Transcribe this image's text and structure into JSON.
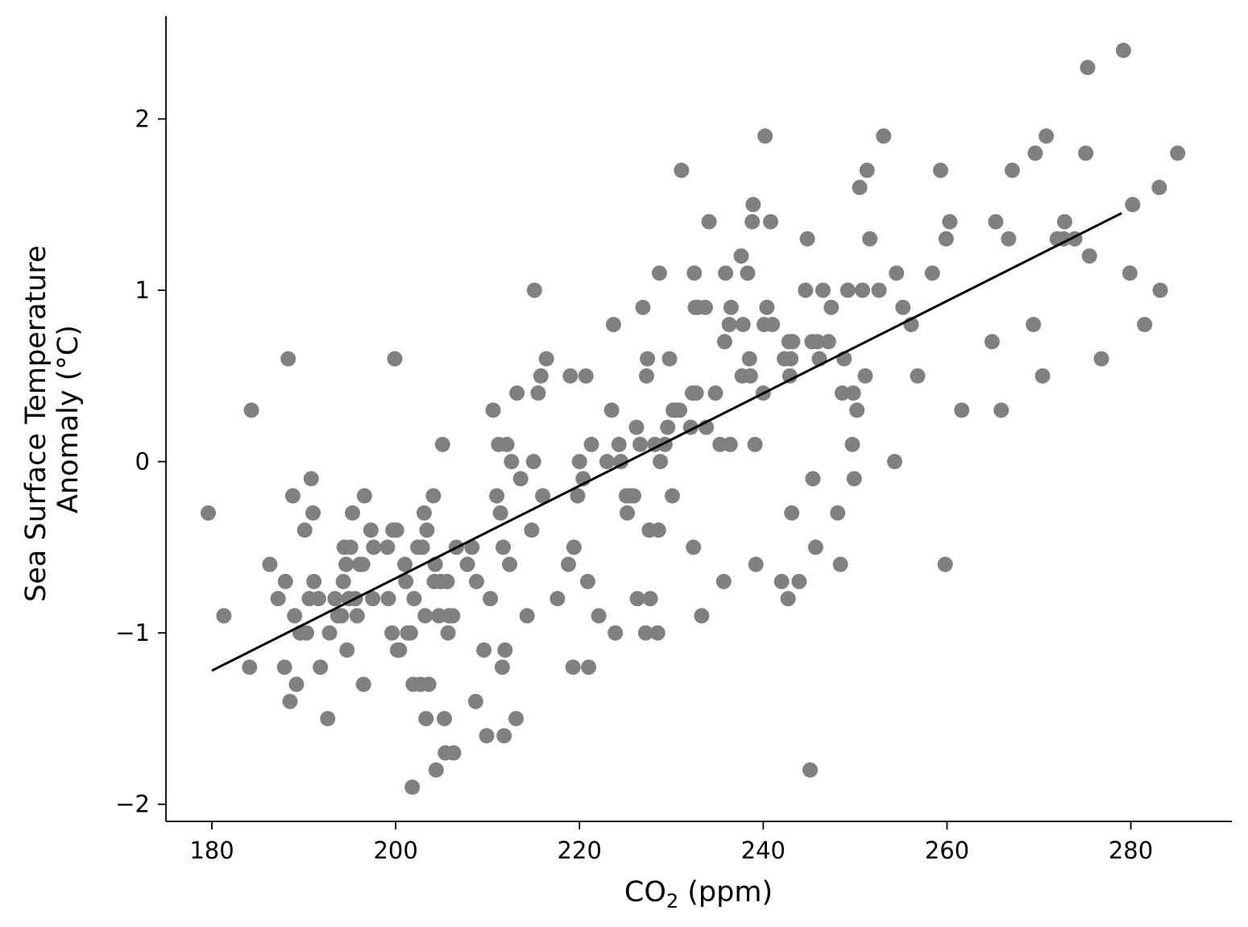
{
  "chart_data": {
    "type": "scatter",
    "xlabel": "CO",
    "xlabel_sub": "2",
    "xlabel_unit": " (ppm)",
    "ylabel_lines": [
      "Sea Surface Temperature",
      "Anomaly (°C)"
    ],
    "xlim": [
      175,
      291
    ],
    "ylim": [
      -2.1,
      2.6
    ],
    "x_ticks": [
      180,
      200,
      220,
      240,
      260,
      280
    ],
    "y_ticks": [
      -2,
      -1,
      0,
      1,
      2
    ],
    "x_tick_labels": [
      "180",
      "200",
      "220",
      "240",
      "260",
      "280"
    ],
    "y_tick_labels": [
      "−2",
      "−1",
      "0",
      "1",
      "2"
    ],
    "grid": false,
    "point_color": "#808080",
    "line_color": "#000000",
    "trend_line": {
      "x": [
        180,
        279
      ],
      "y": [
        -1.22,
        1.45
      ]
    },
    "points": [
      [
        179.6,
        -0.3
      ],
      [
        181.3,
        -0.9
      ],
      [
        184.1,
        -1.2
      ],
      [
        184.3,
        0.3
      ],
      [
        186.3,
        -0.6
      ],
      [
        187.2,
        -0.8
      ],
      [
        187.9,
        -1.2
      ],
      [
        188.0,
        -0.7
      ],
      [
        188.3,
        0.6
      ],
      [
        188.5,
        -1.4
      ],
      [
        188.8,
        -0.2
      ],
      [
        189.0,
        -0.9
      ],
      [
        189.2,
        -1.3
      ],
      [
        189.6,
        -1.0
      ],
      [
        190.1,
        -0.4
      ],
      [
        190.3,
        -1.0
      ],
      [
        190.6,
        -0.8
      ],
      [
        190.8,
        -0.1
      ],
      [
        191.0,
        -0.3
      ],
      [
        191.1,
        -0.7
      ],
      [
        191.6,
        -0.8
      ],
      [
        191.8,
        -1.2
      ],
      [
        192.6,
        -1.5
      ],
      [
        192.8,
        -1.0
      ],
      [
        193.4,
        -0.8
      ],
      [
        193.7,
        -0.9
      ],
      [
        194.1,
        -0.9
      ],
      [
        194.3,
        -0.7
      ],
      [
        194.4,
        -0.5
      ],
      [
        194.6,
        -0.6
      ],
      [
        194.7,
        -1.1
      ],
      [
        194.9,
        -0.8
      ],
      [
        195.1,
        -0.5
      ],
      [
        195.3,
        -0.3
      ],
      [
        195.6,
        -0.8
      ],
      [
        195.8,
        -0.9
      ],
      [
        196.1,
        -0.6
      ],
      [
        196.4,
        -0.6
      ],
      [
        196.5,
        -1.3
      ],
      [
        196.6,
        -0.2
      ],
      [
        197.3,
        -0.4
      ],
      [
        197.5,
        -0.8
      ],
      [
        197.6,
        -0.5
      ],
      [
        199.1,
        -0.5
      ],
      [
        199.2,
        -0.8
      ],
      [
        199.6,
        -1.0
      ],
      [
        199.7,
        -0.4
      ],
      [
        199.9,
        0.6
      ],
      [
        200.1,
        -0.4
      ],
      [
        200.2,
        -1.1
      ],
      [
        200.4,
        -1.1
      ],
      [
        201.0,
        -0.6
      ],
      [
        201.1,
        -0.7
      ],
      [
        201.3,
        -1.0
      ],
      [
        201.6,
        -1.0
      ],
      [
        201.8,
        -1.9
      ],
      [
        201.9,
        -1.3
      ],
      [
        202.0,
        -0.8
      ],
      [
        202.4,
        -0.5
      ],
      [
        202.7,
        -1.3
      ],
      [
        202.9,
        -0.5
      ],
      [
        203.1,
        -0.3
      ],
      [
        203.2,
        -0.9
      ],
      [
        203.3,
        -1.5
      ],
      [
        203.4,
        -0.4
      ],
      [
        203.6,
        -1.3
      ],
      [
        204.1,
        -0.2
      ],
      [
        204.2,
        -0.7
      ],
      [
        204.3,
        -0.6
      ],
      [
        204.4,
        -1.8
      ],
      [
        204.7,
        -0.9
      ],
      [
        204.9,
        -0.7
      ],
      [
        205.1,
        0.1
      ],
      [
        205.3,
        -1.5
      ],
      [
        205.4,
        -1.7
      ],
      [
        205.6,
        -0.7
      ],
      [
        205.7,
        -1.0
      ],
      [
        205.8,
        -0.9
      ],
      [
        206.2,
        -0.9
      ],
      [
        206.3,
        -1.7
      ],
      [
        206.6,
        -0.5
      ],
      [
        207.8,
        -0.6
      ],
      [
        208.3,
        -0.5
      ],
      [
        208.7,
        -1.4
      ],
      [
        208.8,
        -0.7
      ],
      [
        209.6,
        -1.1
      ],
      [
        209.9,
        -1.6
      ],
      [
        210.3,
        -0.8
      ],
      [
        210.6,
        0.3
      ],
      [
        211.0,
        -0.2
      ],
      [
        211.2,
        0.1
      ],
      [
        211.4,
        -0.3
      ],
      [
        211.6,
        -1.2
      ],
      [
        211.7,
        -0.5
      ],
      [
        211.8,
        -1.6
      ],
      [
        211.9,
        -1.1
      ],
      [
        212.1,
        0.1
      ],
      [
        212.4,
        -0.6
      ],
      [
        212.6,
        0.0
      ],
      [
        213.1,
        -1.5
      ],
      [
        213.2,
        0.4
      ],
      [
        213.6,
        -0.1
      ],
      [
        214.3,
        -0.9
      ],
      [
        214.8,
        -0.4
      ],
      [
        215.0,
        0.0
      ],
      [
        215.1,
        1.0
      ],
      [
        215.5,
        0.4
      ],
      [
        215.8,
        0.5
      ],
      [
        216.0,
        -0.2
      ],
      [
        216.4,
        0.6
      ],
      [
        217.6,
        -0.8
      ],
      [
        218.8,
        -0.6
      ],
      [
        219.0,
        0.5
      ],
      [
        219.3,
        -1.2
      ],
      [
        219.4,
        -0.5
      ],
      [
        219.8,
        -0.2
      ],
      [
        220.0,
        0.0
      ],
      [
        220.4,
        -0.1
      ],
      [
        220.7,
        0.5
      ],
      [
        220.9,
        -0.7
      ],
      [
        221.0,
        -1.2
      ],
      [
        221.3,
        0.1
      ],
      [
        222.1,
        -0.9
      ],
      [
        223.0,
        0.0
      ],
      [
        223.5,
        0.3
      ],
      [
        223.7,
        0.8
      ],
      [
        223.9,
        -1.0
      ],
      [
        224.3,
        0.1
      ],
      [
        224.5,
        0.0
      ],
      [
        225.1,
        -0.2
      ],
      [
        225.2,
        -0.3
      ],
      [
        225.5,
        -0.2
      ],
      [
        225.9,
        -0.2
      ],
      [
        226.2,
        0.2
      ],
      [
        226.3,
        -0.8
      ],
      [
        226.6,
        0.1
      ],
      [
        226.9,
        0.9
      ],
      [
        227.2,
        -1.0
      ],
      [
        227.3,
        0.5
      ],
      [
        227.4,
        0.6
      ],
      [
        227.6,
        -0.4
      ],
      [
        227.7,
        -0.8
      ],
      [
        228.2,
        0.1
      ],
      [
        228.5,
        -1.0
      ],
      [
        228.6,
        -0.4
      ],
      [
        228.7,
        1.1
      ],
      [
        228.8,
        0.0
      ],
      [
        229.3,
        0.1
      ],
      [
        229.6,
        0.2
      ],
      [
        229.8,
        0.6
      ],
      [
        230.1,
        -0.2
      ],
      [
        230.2,
        0.3
      ],
      [
        230.5,
        0.3
      ],
      [
        230.9,
        0.3
      ],
      [
        231.1,
        1.7
      ],
      [
        232.1,
        0.2
      ],
      [
        232.3,
        0.4
      ],
      [
        232.4,
        -0.5
      ],
      [
        232.5,
        1.1
      ],
      [
        232.6,
        0.9
      ],
      [
        232.7,
        0.4
      ],
      [
        232.9,
        0.9
      ],
      [
        233.3,
        -0.9
      ],
      [
        233.7,
        0.9
      ],
      [
        233.8,
        0.2
      ],
      [
        234.1,
        1.4
      ],
      [
        234.8,
        0.4
      ],
      [
        235.3,
        0.1
      ],
      [
        235.7,
        -0.7
      ],
      [
        235.8,
        0.7
      ],
      [
        235.9,
        1.1
      ],
      [
        236.3,
        0.8
      ],
      [
        236.4,
        0.1
      ],
      [
        236.5,
        0.9
      ],
      [
        237.6,
        1.2
      ],
      [
        237.7,
        0.5
      ],
      [
        237.8,
        0.8
      ],
      [
        238.3,
        1.1
      ],
      [
        238.5,
        0.6
      ],
      [
        238.6,
        0.5
      ],
      [
        238.8,
        1.4
      ],
      [
        238.9,
        1.5
      ],
      [
        239.1,
        0.1
      ],
      [
        239.2,
        -0.6
      ],
      [
        240.0,
        0.4
      ],
      [
        240.1,
        0.8
      ],
      [
        240.2,
        1.9
      ],
      [
        240.4,
        0.9
      ],
      [
        240.8,
        1.4
      ],
      [
        241.0,
        0.8
      ],
      [
        242.0,
        -0.7
      ],
      [
        242.3,
        0.6
      ],
      [
        242.7,
        -0.8
      ],
      [
        242.8,
        0.7
      ],
      [
        242.9,
        0.5
      ],
      [
        243.0,
        0.6
      ],
      [
        243.1,
        -0.3
      ],
      [
        243.2,
        0.7
      ],
      [
        243.9,
        -0.7
      ],
      [
        244.6,
        1.0
      ],
      [
        244.8,
        1.3
      ],
      [
        245.1,
        -1.8
      ],
      [
        245.3,
        0.7
      ],
      [
        245.4,
        -0.1
      ],
      [
        245.7,
        -0.5
      ],
      [
        245.9,
        0.7
      ],
      [
        246.1,
        0.6
      ],
      [
        246.5,
        1.0
      ],
      [
        247.1,
        0.7
      ],
      [
        247.4,
        0.9
      ],
      [
        248.1,
        -0.3
      ],
      [
        248.4,
        -0.6
      ],
      [
        248.6,
        0.4
      ],
      [
        248.8,
        0.6
      ],
      [
        249.2,
        1.0
      ],
      [
        249.7,
        0.1
      ],
      [
        249.8,
        0.4
      ],
      [
        249.9,
        -0.1
      ],
      [
        250.2,
        0.3
      ],
      [
        250.5,
        1.6
      ],
      [
        250.8,
        1.0
      ],
      [
        251.1,
        0.5
      ],
      [
        251.3,
        1.7
      ],
      [
        251.6,
        1.3
      ],
      [
        252.6,
        1.0
      ],
      [
        253.1,
        1.9
      ],
      [
        254.3,
        0.0
      ],
      [
        254.5,
        1.1
      ],
      [
        255.2,
        0.9
      ],
      [
        256.1,
        0.8
      ],
      [
        256.8,
        0.5
      ],
      [
        258.4,
        1.1
      ],
      [
        259.3,
        1.7
      ],
      [
        259.8,
        -0.6
      ],
      [
        259.9,
        1.3
      ],
      [
        260.3,
        1.4
      ],
      [
        261.6,
        0.3
      ],
      [
        264.9,
        0.7
      ],
      [
        265.3,
        1.4
      ],
      [
        265.9,
        0.3
      ],
      [
        266.7,
        1.3
      ],
      [
        267.1,
        1.7
      ],
      [
        269.4,
        0.8
      ],
      [
        269.6,
        1.8
      ],
      [
        270.4,
        0.5
      ],
      [
        270.8,
        1.9
      ],
      [
        272.0,
        1.3
      ],
      [
        272.7,
        1.3
      ],
      [
        272.8,
        1.4
      ],
      [
        273.9,
        1.3
      ],
      [
        275.1,
        1.8
      ],
      [
        275.3,
        2.3
      ],
      [
        275.5,
        1.2
      ],
      [
        276.8,
        0.6
      ],
      [
        279.2,
        2.4
      ],
      [
        279.9,
        1.1
      ],
      [
        280.2,
        1.5
      ],
      [
        281.5,
        0.8
      ],
      [
        283.1,
        1.6
      ],
      [
        283.2,
        1.0
      ],
      [
        285.1,
        1.8
      ]
    ]
  }
}
